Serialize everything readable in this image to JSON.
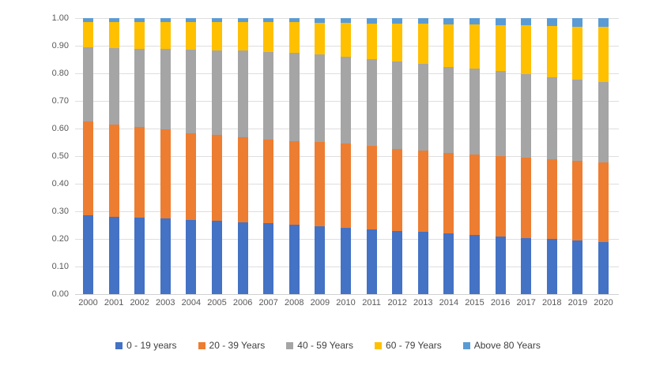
{
  "chart_data": {
    "type": "bar",
    "variant": "stacked-100-percent",
    "title": "",
    "xlabel": "",
    "ylabel": "",
    "ylim": [
      0.0,
      1.0
    ],
    "ytick_step": 0.1,
    "ytick_labels": [
      "0.00",
      "0.10",
      "0.20",
      "0.30",
      "0.40",
      "0.50",
      "0.60",
      "0.70",
      "0.80",
      "0.90",
      "1.00"
    ],
    "grid": true,
    "legend_position": "bottom",
    "categories": [
      "2000",
      "2001",
      "2002",
      "2003",
      "2004",
      "2005",
      "2006",
      "2007",
      "2008",
      "2009",
      "2010",
      "2011",
      "2012",
      "2013",
      "2014",
      "2015",
      "2016",
      "2017",
      "2018",
      "2019",
      "2020"
    ],
    "series": [
      {
        "name": "0 - 19 years",
        "color": "#4472C4",
        "values": [
          0.286,
          0.281,
          0.277,
          0.273,
          0.269,
          0.265,
          0.261,
          0.257,
          0.252,
          0.247,
          0.241,
          0.235,
          0.23,
          0.225,
          0.219,
          0.214,
          0.209,
          0.204,
          0.199,
          0.194,
          0.189
        ]
      },
      {
        "name": "20 - 39 Years",
        "color": "#ED7D31",
        "values": [
          0.339,
          0.332,
          0.328,
          0.323,
          0.315,
          0.311,
          0.308,
          0.303,
          0.303,
          0.304,
          0.304,
          0.301,
          0.297,
          0.295,
          0.293,
          0.293,
          0.291,
          0.289,
          0.289,
          0.288,
          0.288
        ]
      },
      {
        "name": "40 - 59 Years",
        "color": "#A5A5A5",
        "values": [
          0.27,
          0.279,
          0.284,
          0.292,
          0.302,
          0.308,
          0.313,
          0.318,
          0.319,
          0.317,
          0.316,
          0.315,
          0.316,
          0.314,
          0.312,
          0.31,
          0.31,
          0.304,
          0.299,
          0.294,
          0.293
        ]
      },
      {
        "name": "60 - 79 Years",
        "color": "#FFC000",
        "values": [
          0.092,
          0.094,
          0.096,
          0.097,
          0.099,
          0.101,
          0.103,
          0.107,
          0.111,
          0.116,
          0.122,
          0.13,
          0.137,
          0.145,
          0.153,
          0.159,
          0.165,
          0.176,
          0.185,
          0.194,
          0.198
        ]
      },
      {
        "name": "Above 80 Years",
        "color": "#5B9BD5",
        "values": [
          0.013,
          0.014,
          0.015,
          0.015,
          0.015,
          0.015,
          0.015,
          0.015,
          0.015,
          0.016,
          0.017,
          0.019,
          0.02,
          0.021,
          0.023,
          0.024,
          0.025,
          0.027,
          0.028,
          0.03,
          0.032
        ]
      }
    ]
  },
  "style": {
    "gridline_color": "#dedede",
    "axis_text_color": "#595959",
    "legend_text_color": "#404040",
    "background": "#ffffff"
  }
}
